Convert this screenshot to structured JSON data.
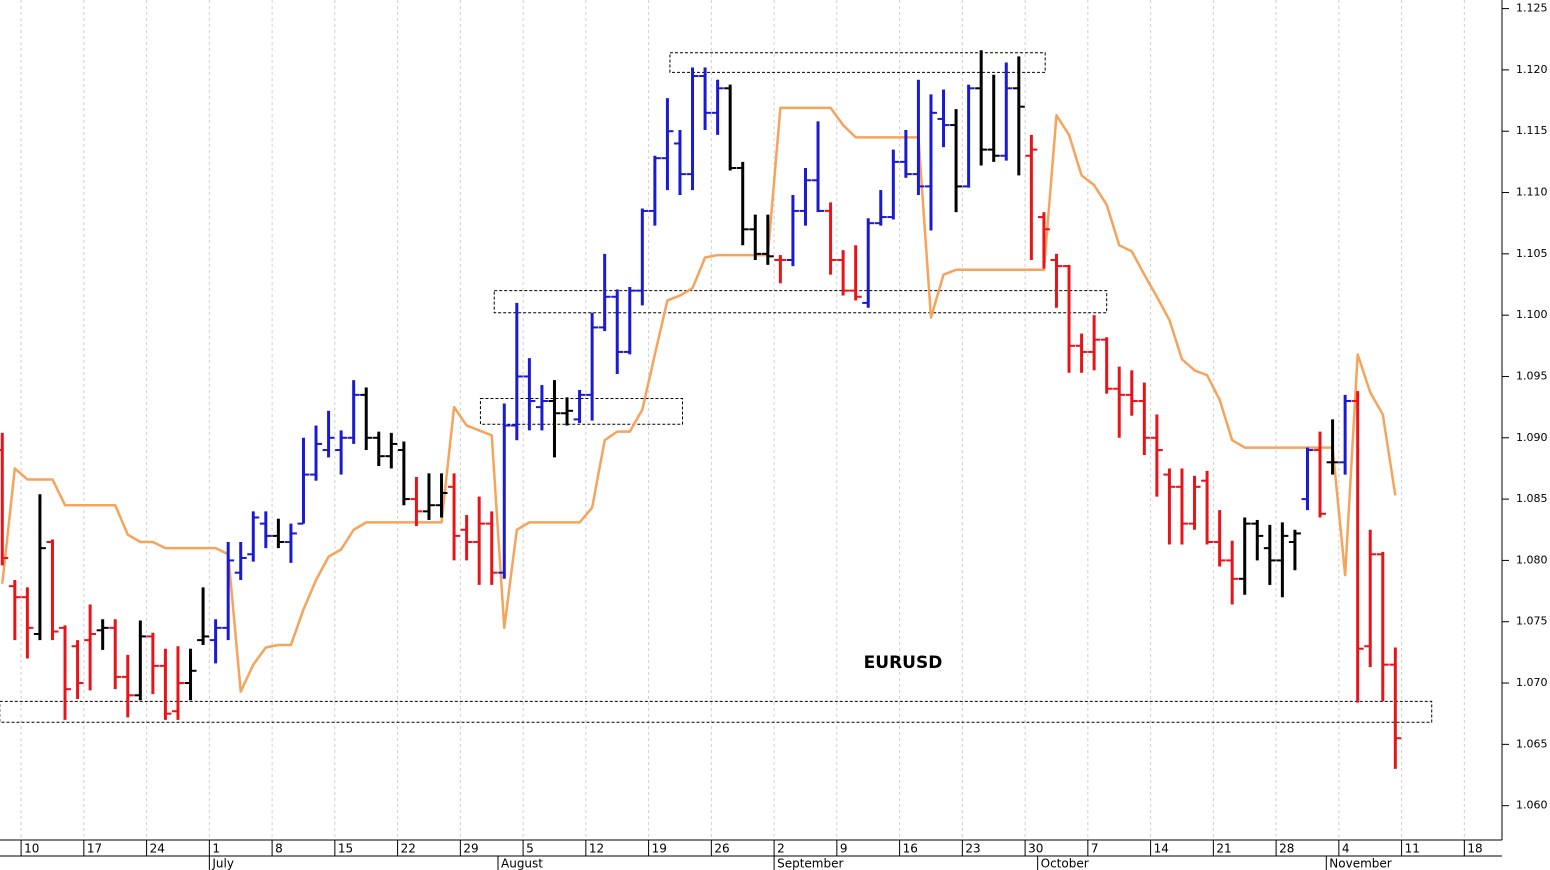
{
  "chart_data": {
    "type": "ohlc",
    "annotation": "EURUSD",
    "categories": [
      null,
      null,
      "10",
      null,
      null,
      null,
      null,
      "17",
      null,
      null,
      null,
      null,
      "24",
      null,
      null,
      null,
      null,
      "1",
      null,
      null,
      null,
      null,
      "8",
      null,
      null,
      null,
      null,
      "15",
      null,
      null,
      null,
      null,
      "22",
      null,
      null,
      null,
      null,
      "29",
      null,
      null,
      null,
      null,
      "5",
      null,
      null,
      null,
      null,
      "12",
      null,
      null,
      null,
      null,
      "19",
      null,
      null,
      null,
      null,
      "26",
      null,
      null,
      null,
      null,
      "2",
      null,
      null,
      null,
      null,
      "9",
      null,
      null,
      null,
      null,
      "16",
      null,
      null,
      null,
      null,
      "23",
      null,
      null,
      null,
      null,
      "30",
      null,
      null,
      null,
      null,
      "7",
      null,
      null,
      null,
      null,
      "14",
      null,
      null,
      null,
      null,
      "21",
      null,
      null,
      null,
      null,
      "28",
      null,
      null,
      null,
      null,
      "4",
      null,
      null,
      null,
      null,
      "11",
      null,
      null,
      null,
      null,
      "18",
      null,
      null
    ],
    "month_categories": [
      null,
      null,
      null,
      null,
      null,
      null,
      null,
      null,
      null,
      null,
      null,
      null,
      null,
      null,
      null,
      null,
      null,
      "July",
      null,
      null,
      null,
      null,
      null,
      null,
      null,
      null,
      null,
      null,
      null,
      null,
      null,
      null,
      null,
      null,
      null,
      null,
      null,
      null,
      null,
      null,
      "August",
      null,
      null,
      null,
      null,
      null,
      null,
      null,
      null,
      null,
      null,
      null,
      null,
      null,
      null,
      null,
      null,
      null,
      null,
      null,
      null,
      null,
      "September",
      null,
      null,
      null,
      null,
      null,
      null,
      null,
      null,
      null,
      null,
      null,
      null,
      null,
      null,
      null,
      null,
      null,
      null,
      null,
      null,
      "October",
      null,
      null,
      null,
      null,
      null,
      null,
      null,
      null,
      null,
      null,
      null,
      null,
      null,
      null,
      null,
      null,
      null,
      null,
      null,
      null,
      null,
      null,
      "November",
      null,
      null,
      null,
      null,
      null,
      null,
      null,
      null,
      null,
      null,
      null,
      null,
      null
    ],
    "open": [
      1.089,
      1.0779,
      1.077,
      1.074,
      1.0815,
      1.0745,
      1.073,
      1.0735,
      1.0743,
      1.0745,
      1.0705,
      1.069,
      1.0738,
      1.0714,
      1.0677,
      1.07,
      1.0735,
      1.0735,
      1.0745,
      1.079,
      1.0805,
      1.083,
      1.082,
      1.0815,
      1.083,
      1.087,
      1.089,
      1.089,
      1.09,
      1.0935,
      1.09,
      1.0885,
      1.089,
      1.085,
      1.084,
      1.0845,
      1.086,
      1.0825,
      1.0815,
      1.083,
      1.079,
      1.091,
      1.095,
      1.0925,
      1.093,
      1.092,
      1.0915,
      1.0935,
      1.099,
      1.1015,
      1.097,
      1.102,
      1.1085,
      1.1128,
      1.114,
      1.1115,
      1.1195,
      1.1165,
      1.1185,
      1.112,
      1.107,
      1.105,
      1.1045,
      1.1045,
      1.1085,
      1.111,
      1.1085,
      1.1045,
      1.102,
      1.101,
      1.1075,
      1.108,
      1.1125,
      1.1115,
      1.1105,
      1.116,
      1.1155,
      1.1105,
      1.1185,
      1.1135,
      1.113,
      1.1185,
      1.113,
      1.108,
      1.1045,
      1.104,
      1.0975,
      1.097,
      1.098,
      1.094,
      1.0935,
      1.093,
      1.09,
      1.087,
      1.086,
      1.083,
      1.0865,
      1.0815,
      1.08,
      1.0785,
      1.083,
      1.081,
      1.08,
      1.0815,
      1.085,
      1.089,
      1.088,
      1.088,
      1.093,
      1.073,
      1.0805,
      1.0715,
      null,
      null,
      null,
      null,
      null,
      null,
      null,
      null
    ],
    "high": [
      1.0904,
      1.0784,
      1.0778,
      1.0854,
      1.0817,
      1.0747,
      1.0735,
      1.0764,
      1.0752,
      1.0752,
      1.0723,
      1.0751,
      1.0741,
      1.0728,
      1.073,
      1.0728,
      1.0778,
      1.0752,
      1.0815,
      1.0815,
      1.084,
      1.084,
      1.0834,
      1.083,
      1.09,
      1.091,
      1.0922,
      1.0906,
      1.0947,
      1.0941,
      1.0905,
      1.0904,
      1.0897,
      1.0868,
      1.0871,
      1.0871,
      1.0871,
      1.0837,
      1.0852,
      1.084,
      1.0928,
      1.101,
      1.0965,
      1.0943,
      1.0947,
      1.0933,
      1.0939,
      1.1002,
      1.105,
      1.1021,
      1.1023,
      1.1087,
      1.113,
      1.1177,
      1.1151,
      1.1202,
      1.1202,
      1.1192,
      1.1188,
      1.1125,
      1.1082,
      1.1082,
      1.1049,
      1.1098,
      1.112,
      1.1158,
      1.1092,
      1.1053,
      1.1057,
      1.1079,
      1.1102,
      1.1135,
      1.1151,
      1.1192,
      1.118,
      1.1184,
      1.1168,
      1.1188,
      1.1216,
      1.1196,
      1.1206,
      1.1211,
      1.1147,
      1.1084,
      1.105,
      1.1041,
      1.0985,
      1.1,
      1.0982,
      1.0958,
      1.0955,
      1.0945,
      1.0919,
      1.0875,
      1.0875,
      1.0869,
      1.0873,
      1.0841,
      1.0816,
      1.0835,
      1.0833,
      1.0829,
      1.0831,
      1.0825,
      1.0892,
      1.0905,
      1.0915,
      1.0935,
      1.0938,
      1.0825,
      1.0807,
      1.0729,
      null,
      null,
      null,
      null,
      null,
      null,
      null,
      null
    ],
    "low": [
      1.0796,
      1.0735,
      1.072,
      1.0735,
      1.0735,
      1.067,
      1.0687,
      1.0694,
      1.0727,
      1.0695,
      1.0672,
      1.0686,
      1.0691,
      1.067,
      1.067,
      1.0686,
      1.0731,
      1.0716,
      1.0735,
      1.0784,
      1.0799,
      1.081,
      1.081,
      1.0798,
      1.083,
      1.0865,
      1.0884,
      1.087,
      1.0895,
      1.089,
      1.0877,
      1.0875,
      1.0845,
      1.0828,
      1.0833,
      1.0835,
      1.08,
      1.08,
      1.078,
      1.078,
      1.0785,
      1.0898,
      1.0906,
      1.0906,
      1.0884,
      1.091,
      1.0912,
      1.0914,
      1.0987,
      1.0952,
      1.0968,
      1.1008,
      1.1073,
      1.1102,
      1.1098,
      1.1102,
      1.1151,
      1.1147,
      1.1118,
      1.1057,
      1.1045,
      1.1041,
      1.1026,
      1.104,
      1.1073,
      1.1084,
      1.1033,
      1.1016,
      1.1012,
      1.1006,
      1.1073,
      1.1078,
      1.1112,
      1.1098,
      1.1069,
      1.1137,
      1.1084,
      1.1104,
      1.1122,
      1.1125,
      1.1126,
      1.1114,
      1.1045,
      1.1038,
      1.1006,
      1.0953,
      1.0953,
      1.0955,
      1.0936,
      1.09,
      1.0918,
      1.0886,
      1.0852,
      1.0813,
      1.0813,
      1.0825,
      1.0813,
      1.0795,
      1.0764,
      1.0772,
      1.08,
      1.078,
      1.077,
      1.0792,
      1.0841,
      1.0835,
      1.087,
      1.087,
      1.0684,
      1.0713,
      1.0685,
      1.063,
      null,
      null,
      null,
      null,
      null,
      null,
      null,
      null
    ],
    "close": [
      1.0802,
      1.077,
      1.0745,
      1.081,
      1.0742,
      1.0695,
      1.07,
      1.074,
      1.0745,
      1.0705,
      1.069,
      1.0738,
      1.0714,
      1.0675,
      1.07,
      1.071,
      1.0738,
      1.0745,
      1.08,
      1.0802,
      1.0835,
      1.082,
      1.0815,
      1.0822,
      1.087,
      1.0895,
      1.09,
      1.09,
      1.0935,
      1.09,
      1.0885,
      1.0895,
      1.085,
      1.084,
      1.0845,
      1.0855,
      1.082,
      1.0815,
      1.083,
      1.079,
      1.091,
      1.095,
      1.093,
      1.093,
      1.092,
      1.0922,
      1.0935,
      1.099,
      1.1015,
      1.097,
      1.102,
      1.1085,
      1.1128,
      1.115,
      1.1115,
      1.1195,
      1.1165,
      1.1185,
      1.112,
      1.107,
      1.105,
      1.1048,
      1.1045,
      1.1085,
      1.111,
      1.1085,
      1.1045,
      1.102,
      1.1015,
      1.1075,
      1.108,
      1.1125,
      1.1115,
      1.1105,
      1.1165,
      1.1155,
      1.1105,
      1.1185,
      1.1135,
      1.113,
      1.1185,
      1.117,
      1.1135,
      1.107,
      1.104,
      1.0975,
      1.097,
      1.098,
      1.094,
      1.0935,
      1.093,
      1.09,
      1.089,
      1.086,
      1.083,
      1.086,
      1.0815,
      1.08,
      1.0785,
      1.083,
      1.082,
      1.08,
      1.082,
      1.0822,
      1.089,
      1.0838,
      1.088,
      1.093,
      1.0728,
      1.0805,
      1.0715,
      1.0655,
      null,
      null,
      null,
      null,
      null,
      null,
      null,
      null
    ],
    "bar_colors": [
      "#e8141a",
      "#e8141a",
      "#e8141a",
      "#000000",
      "#e8141a",
      "#e8141a",
      "#e8141a",
      "#e8141a",
      "#000000",
      "#e8141a",
      "#e8141a",
      "#000000",
      "#e8141a",
      "#e8141a",
      "#e8141a",
      "#000000",
      "#000000",
      "#1a1ad2",
      "#1a1ad2",
      "#1a1ad2",
      "#1a1ad2",
      "#1a1ad2",
      "#000000",
      "#1a1ad2",
      "#1a1ad2",
      "#1a1ad2",
      "#1a1ad2",
      "#1a1ad2",
      "#1a1ad2",
      "#000000",
      "#000000",
      "#000000",
      "#000000",
      "#e8141a",
      "#000000",
      "#000000",
      "#e8141a",
      "#e8141a",
      "#e8141a",
      "#e8141a",
      "#1a1ad2",
      "#1a1ad2",
      "#1a1ad2",
      "#1a1ad2",
      "#000000",
      "#000000",
      "#1a1ad2",
      "#1a1ad2",
      "#1a1ad2",
      "#1a1ad2",
      "#1a1ad2",
      "#1a1ad2",
      "#1a1ad2",
      "#1a1ad2",
      "#1a1ad2",
      "#1a1ad2",
      "#1a1ad2",
      "#1a1ad2",
      "#000000",
      "#000000",
      "#000000",
      "#000000",
      "#e8141a",
      "#1a1ad2",
      "#1a1ad2",
      "#1a1ad2",
      "#e8141a",
      "#e8141a",
      "#e8141a",
      "#1a1ad2",
      "#1a1ad2",
      "#1a1ad2",
      "#1a1ad2",
      "#1a1ad2",
      "#1a1ad2",
      "#1a1ad2",
      "#000000",
      "#1a1ad2",
      "#000000",
      "#000000",
      "#1a1ad2",
      "#000000",
      "#e8141a",
      "#e8141a",
      "#e8141a",
      "#e8141a",
      "#e8141a",
      "#e8141a",
      "#e8141a",
      "#e8141a",
      "#e8141a",
      "#e8141a",
      "#e8141a",
      "#e8141a",
      "#e8141a",
      "#e8141a",
      "#e8141a",
      "#e8141a",
      "#e8141a",
      "#000000",
      "#000000",
      "#000000",
      "#000000",
      "#000000",
      "#1a1ad2",
      "#e8141a",
      "#000000",
      "#1a1ad2",
      "#e8141a",
      "#e8141a",
      "#e8141a",
      "#e8141a",
      null,
      null,
      null,
      null,
      null,
      null,
      null,
      null
    ],
    "line": {
      "color": "#f6a35c",
      "values": [
        1.0781,
        1.0875,
        1.0866,
        1.0866,
        1.0866,
        1.0845,
        1.0845,
        1.0845,
        1.0845,
        1.0845,
        1.0821,
        1.0815,
        1.0815,
        1.081,
        1.081,
        1.081,
        1.081,
        1.081,
        1.0805,
        1.0693,
        1.0715,
        1.0729,
        1.0731,
        1.0731,
        1.076,
        1.0784,
        1.0803,
        1.0809,
        1.0825,
        1.0831,
        1.0831,
        1.0831,
        1.0831,
        1.0831,
        1.0831,
        1.0831,
        1.0925,
        1.091,
        1.0906,
        1.0902,
        1.0745,
        1.0825,
        1.0831,
        1.0831,
        1.0831,
        1.0831,
        1.0831,
        1.0843,
        1.0898,
        1.0905,
        1.0905,
        1.0923,
        1.0968,
        1.1012,
        1.1016,
        1.1022,
        1.1047,
        1.1049,
        1.1049,
        1.1049,
        1.1049,
        1.1049,
        1.1169,
        1.1169,
        1.1169,
        1.1169,
        1.1169,
        1.1155,
        1.1145,
        1.1145,
        1.1145,
        1.1145,
        1.1145,
        1.1145,
        1.0998,
        1.1033,
        1.1037,
        1.1037,
        1.1037,
        1.1037,
        1.1037,
        1.1037,
        1.1037,
        1.1037,
        1.1163,
        1.1147,
        1.1114,
        1.1106,
        1.109,
        1.1057,
        1.1052,
        1.1033,
        1.1015,
        1.0996,
        1.0964,
        1.0955,
        1.0951,
        1.0931,
        1.0898,
        1.0892,
        1.0892,
        1.0892,
        1.0892,
        1.0892,
        1.0892,
        1.0892,
        1.0892,
        1.0788,
        1.0968,
        1.0937,
        1.0919,
        1.0853,
        null,
        null,
        null,
        null,
        null,
        null,
        null,
        null
      ]
    },
    "zones": [
      {
        "x": [
          53.2,
          83.1
        ],
        "y": [
          1.1198,
          1.1214
        ]
      },
      {
        "x": [
          39.2,
          88.0
        ],
        "y": [
          1.1002,
          1.102
        ]
      },
      {
        "x": [
          38.1,
          54.2
        ],
        "y": [
          1.0911,
          1.0932
        ]
      },
      {
        "x": [
          -0.2,
          113.9
        ],
        "y": [
          1.0668,
          1.0685
        ]
      }
    ],
    "ylim": [
      1.0572,
      1.1257
    ],
    "yticks": [
      {
        "value": 1.06,
        "label": "1.060"
      },
      {
        "value": 1.065,
        "label": "1.065"
      },
      {
        "value": 1.07,
        "label": "1.070"
      },
      {
        "value": 1.075,
        "label": "1.075"
      },
      {
        "value": 1.08,
        "label": "1.080"
      },
      {
        "value": 1.085,
        "label": "1.085"
      },
      {
        "value": 1.09,
        "label": "1.090"
      },
      {
        "value": 1.095,
        "label": "1.095"
      },
      {
        "value": 1.1,
        "label": "1.100"
      },
      {
        "value": 1.105,
        "label": "1.105"
      },
      {
        "value": 1.11,
        "label": "1.110"
      },
      {
        "value": 1.115,
        "label": "1.115"
      },
      {
        "value": 1.12,
        "label": "1.120"
      },
      {
        "value": 1.125,
        "label": "1.125"
      }
    ],
    "grid": "x"
  }
}
